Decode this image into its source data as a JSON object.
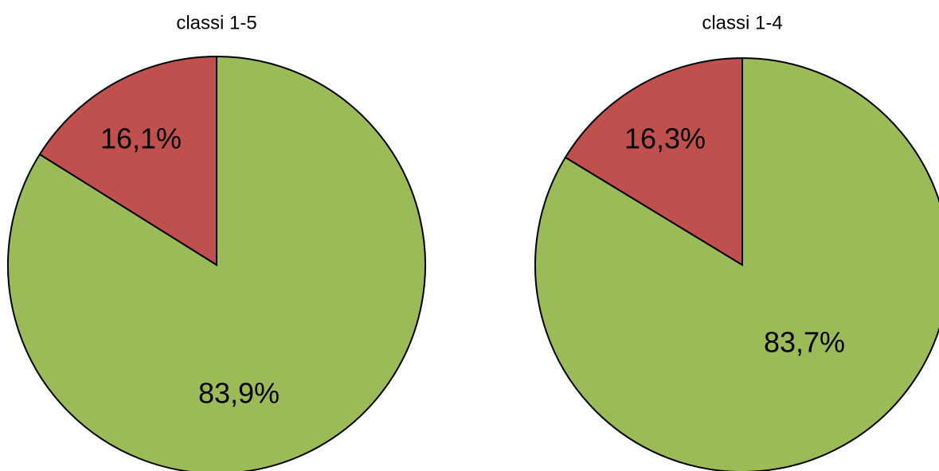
{
  "chart_data": [
    {
      "type": "pie",
      "title": "classi 1-5",
      "values": [
        83.9,
        16.1
      ],
      "value_labels": [
        "83,9%",
        "16,1%"
      ],
      "colors": [
        "#9bbb59",
        "#c0504d"
      ]
    },
    {
      "type": "pie",
      "title": "classi 1-4",
      "values": [
        83.7,
        16.3
      ],
      "value_labels": [
        "83,7%",
        "16,3%"
      ],
      "colors": [
        "#9bbb59",
        "#c0504d"
      ]
    }
  ]
}
